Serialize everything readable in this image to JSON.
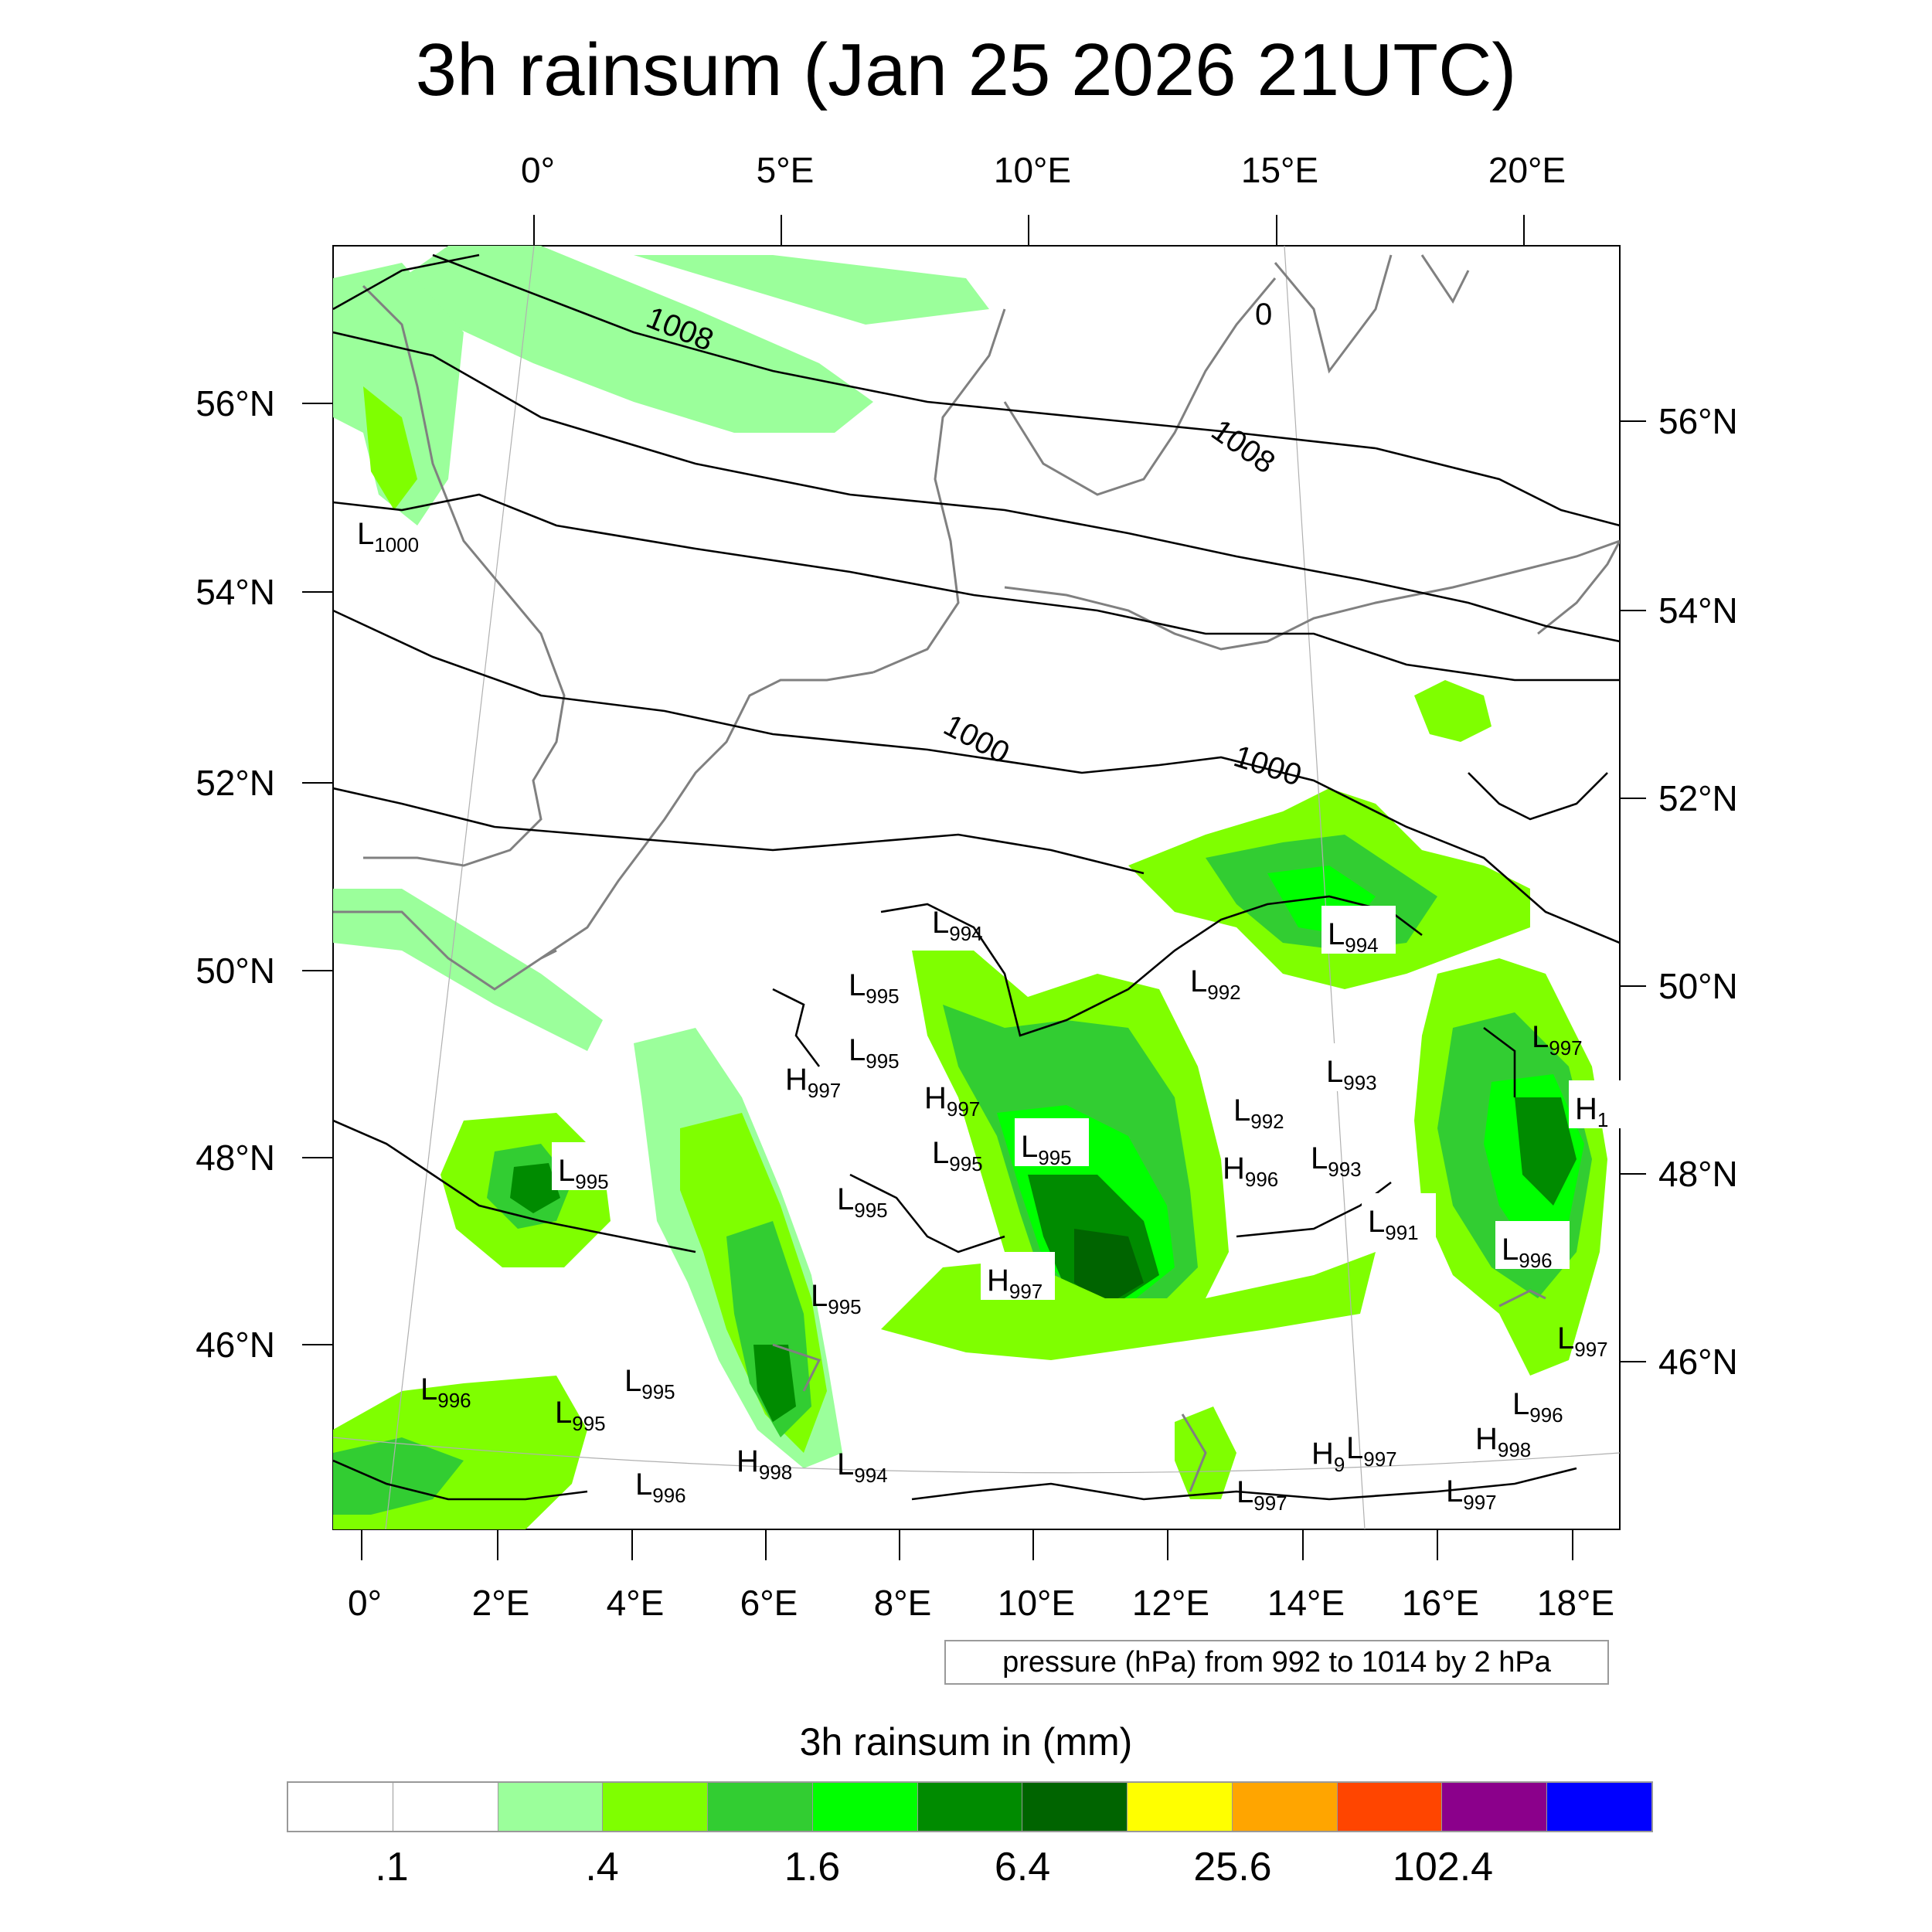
{
  "title": "3h rainsum (Jan 25 2026 21UTC)",
  "top_lon_labels": [
    "0°",
    "5°E",
    "10°E",
    "15°E",
    "20°E"
  ],
  "left_lat_labels": [
    "56°N",
    "54°N",
    "52°N",
    "50°N",
    "48°N",
    "46°N"
  ],
  "right_lat_labels": [
    "56°N",
    "54°N",
    "52°N",
    "50°N",
    "48°N",
    "46°N"
  ],
  "bottom_lon_labels": [
    "0°",
    "2°E",
    "4°E",
    "6°E",
    "8°E",
    "10°E",
    "12°E",
    "14°E",
    "16°E",
    "18°E"
  ],
  "isobar_labels": [
    "1008",
    "1008",
    "1000",
    "1000",
    "0"
  ],
  "pressure_centers": [
    {
      "letter": "L",
      "value": "1000"
    },
    {
      "letter": "L",
      "value": "995"
    },
    {
      "letter": "L",
      "value": "994"
    },
    {
      "letter": "L",
      "value": "995"
    },
    {
      "letter": "L",
      "value": "995"
    },
    {
      "letter": "H",
      "value": "997"
    },
    {
      "letter": "H",
      "value": "997"
    },
    {
      "letter": "L",
      "value": "995"
    },
    {
      "letter": "L",
      "value": "995"
    },
    {
      "letter": "L",
      "value": "992"
    },
    {
      "letter": "L",
      "value": "994"
    },
    {
      "letter": "L",
      "value": "993"
    },
    {
      "letter": "L",
      "value": "992"
    },
    {
      "letter": "L",
      "value": "993"
    },
    {
      "letter": "H",
      "value": "996"
    },
    {
      "letter": "L",
      "value": "997"
    },
    {
      "letter": "H",
      "value": "1"
    },
    {
      "letter": "L",
      "value": "995"
    },
    {
      "letter": "L",
      "value": "995"
    },
    {
      "letter": "L",
      "value": "991"
    },
    {
      "letter": "L",
      "value": "996"
    },
    {
      "letter": "H",
      "value": "997"
    },
    {
      "letter": "L",
      "value": "995"
    },
    {
      "letter": "L",
      "value": "997"
    },
    {
      "letter": "L",
      "value": "996"
    },
    {
      "letter": "L",
      "value": "995"
    },
    {
      "letter": "L",
      "value": "996"
    },
    {
      "letter": "H",
      "value": "998"
    },
    {
      "letter": "L",
      "value": "994"
    },
    {
      "letter": "L",
      "value": "996"
    },
    {
      "letter": "L",
      "value": "997"
    },
    {
      "letter": "H",
      "value": "998"
    },
    {
      "letter": "H",
      "value": "9"
    },
    {
      "letter": "L",
      "value": "997"
    },
    {
      "letter": "L",
      "value": "997"
    }
  ],
  "pressure_note": "pressure (hPa) from 992 to 1014 by 2 hPa",
  "colorbar": {
    "title": "3h rainsum in (mm)",
    "colors": [
      "#ffffff",
      "#ffffff",
      "#9bff9b",
      "#7fff00",
      "#32cd32",
      "#00ff00",
      "#008b00",
      "#006400",
      "#ffff00",
      "#ffa500",
      "#ff4500",
      "#8b008b",
      "#0000ff"
    ],
    "labels": [
      ".1",
      ".4",
      "1.6",
      "6.4",
      "25.6",
      "102.4"
    ]
  }
}
